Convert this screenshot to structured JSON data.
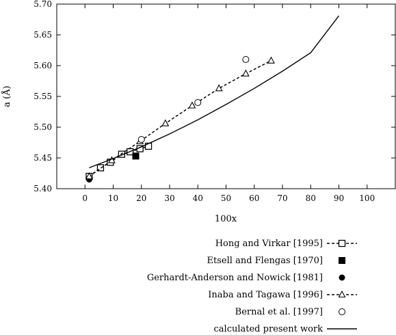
{
  "chart_data": {
    "type": "scatter",
    "xlabel": "100x",
    "ylabel": "a (Å)",
    "xlim": [
      -10,
      110
    ],
    "ylim": [
      5.4,
      5.7
    ],
    "xticks": [
      "0",
      "10",
      "20",
      "30",
      "40",
      "50",
      "60",
      "70",
      "80",
      "90",
      "100"
    ],
    "yticks": [
      "5.40",
      "5.45",
      "5.50",
      "5.55",
      "5.60",
      "5.65",
      "5.70"
    ],
    "grid": false,
    "legend_position": "below",
    "series": [
      {
        "name": "Hong and Virkar [1995]",
        "marker": "open-square",
        "line": "dashed",
        "x": [
          1.5,
          5.5,
          9,
          13,
          16,
          19.5,
          22.5
        ],
        "y": [
          5.42,
          5.434,
          5.443,
          5.456,
          5.46,
          5.465,
          5.469
        ]
      },
      {
        "name": "Etsell and Flengas [1970]",
        "marker": "filled-square",
        "line": "none",
        "x": [
          18
        ],
        "y": [
          5.453
        ]
      },
      {
        "name": "Gerhardt-Anderson and Nowick [1981]",
        "marker": "filled-circle",
        "line": "none",
        "x": [
          1.5
        ],
        "y": [
          5.415
        ]
      },
      {
        "name": "Inaba and Tagawa [1996]",
        "marker": "open-triangle",
        "line": "dashed",
        "x": [
          1.5,
          9.5,
          19.5,
          28.5,
          38,
          47.5,
          57,
          66
        ],
        "y": [
          5.42,
          5.446,
          5.477,
          5.506,
          5.535,
          5.563,
          5.587,
          5.608
        ]
      },
      {
        "name": "Bernal et al. [1997]",
        "marker": "open-circle",
        "line": "none",
        "x": [
          20,
          40,
          57
        ],
        "y": [
          5.48,
          5.54,
          5.61
        ]
      },
      {
        "name": "calculated present work",
        "marker": "none",
        "line": "solid",
        "x": [
          1.5,
          10,
          20,
          30,
          40,
          50,
          60,
          70,
          80,
          90
        ],
        "y": [
          5.434,
          5.449,
          5.468,
          5.489,
          5.512,
          5.537,
          5.563,
          5.591,
          5.621,
          5.681
        ]
      }
    ]
  }
}
